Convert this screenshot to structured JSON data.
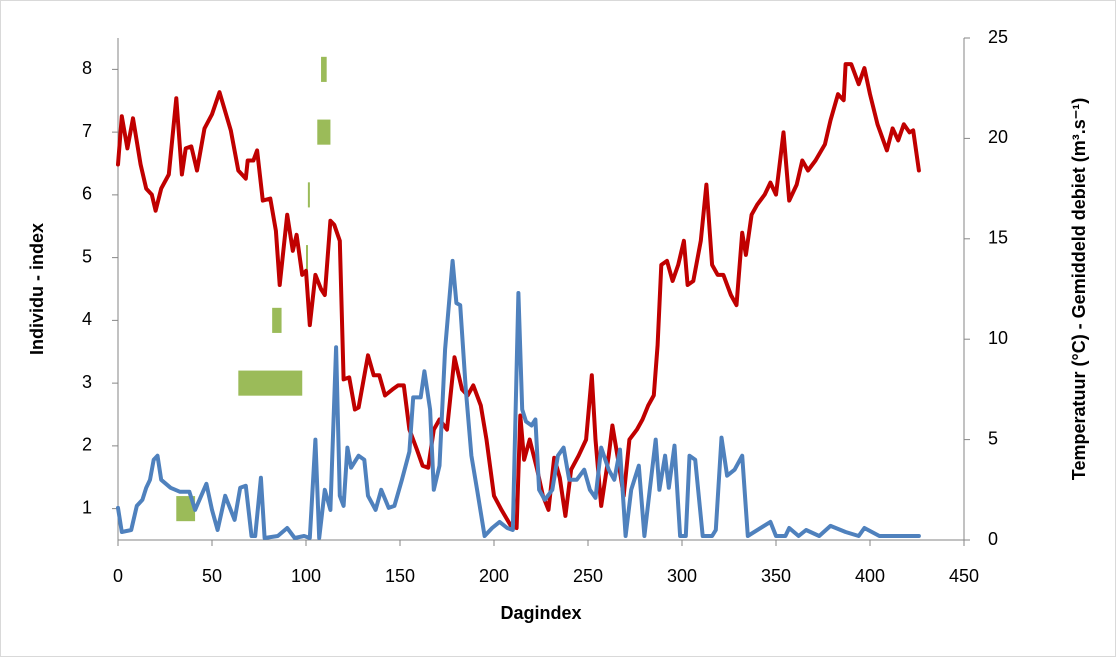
{
  "chart_data": {
    "type": "line",
    "xlabel": "Dagindex",
    "ylabel": "Individu - index",
    "y2label": "Temperatuur (°C) - Gemiddeld debiet (m³.s⁻¹)",
    "xlim": [
      0,
      450
    ],
    "xticks": [
      0,
      50,
      100,
      150,
      200,
      250,
      300,
      350,
      400,
      450
    ],
    "ylim": [
      0.5,
      8.5
    ],
    "yticks": [
      1,
      2,
      3,
      4,
      5,
      6,
      7,
      8
    ],
    "y2lim": [
      0,
      25
    ],
    "y2ticks": [
      0,
      5,
      10,
      15,
      20,
      25
    ],
    "grid": false,
    "range_color": "#9bbb59",
    "ranges": [
      {
        "y": 1,
        "start": 31,
        "end": 41
      },
      {
        "y": 3,
        "start": 64,
        "end": 98
      },
      {
        "y": 4,
        "start": 82,
        "end": 87
      },
      {
        "y": 5,
        "start": 100,
        "end": 101
      },
      {
        "y": 6,
        "start": 101,
        "end": 102
      },
      {
        "y": 7,
        "start": 106,
        "end": 113
      },
      {
        "y": 8,
        "start": 108,
        "end": 111
      }
    ],
    "series": [
      {
        "color": "#c00000",
        "axis": "y2",
        "x": [
          0,
          2,
          5,
          8,
          12,
          15,
          18,
          20,
          23,
          27,
          31,
          34,
          36,
          39,
          42,
          46,
          50,
          54,
          60,
          64,
          68,
          69,
          72,
          74,
          77,
          81,
          84,
          86,
          90,
          93,
          95,
          98,
          100,
          102,
          105,
          108,
          110,
          113,
          115,
          118,
          120,
          123,
          126,
          128,
          133,
          136,
          139,
          142,
          146,
          149,
          152,
          155,
          159,
          162,
          165,
          168,
          171,
          175,
          179,
          183,
          186,
          189,
          193,
          196,
          200,
          204,
          209,
          212,
          214,
          216,
          219,
          223,
          226,
          229,
          232,
          235,
          238,
          241,
          245,
          249,
          252,
          254,
          257,
          261,
          263,
          266,
          269,
          272,
          276,
          279,
          282,
          285,
          287,
          289,
          292,
          295,
          298,
          301,
          303,
          306,
          310,
          313,
          316,
          319,
          322,
          326,
          329,
          332,
          334,
          337,
          340,
          344,
          347,
          350,
          354,
          357,
          361,
          364,
          367,
          371,
          376,
          379,
          383,
          386,
          387,
          390,
          394,
          397,
          400,
          404,
          409,
          412,
          415,
          418,
          421,
          423,
          426
        ],
        "values": [
          18.7,
          21.1,
          19.5,
          21.0,
          18.7,
          17.5,
          17.2,
          16.4,
          17.5,
          18.2,
          22.0,
          18.2,
          19.5,
          19.6,
          18.4,
          20.5,
          21.2,
          22.3,
          20.4,
          18.4,
          18.0,
          18.9,
          18.9,
          19.4,
          16.9,
          17.0,
          15.4,
          12.7,
          16.2,
          14.4,
          15.2,
          13.2,
          13.4,
          10.7,
          13.2,
          12.5,
          12.2,
          15.9,
          15.7,
          14.9,
          8.0,
          8.1,
          6.5,
          6.6,
          9.2,
          8.2,
          8.2,
          7.2,
          7.5,
          7.7,
          7.7,
          5.5,
          4.5,
          3.7,
          3.6,
          5.5,
          6.0,
          5.5,
          9.1,
          7.5,
          7.2,
          7.7,
          6.7,
          5.0,
          2.2,
          1.5,
          0.7,
          0.6,
          6.2,
          4.0,
          5.0,
          3.5,
          2.2,
          1.5,
          4.1,
          3.1,
          1.2,
          3.5,
          4.2,
          5.0,
          8.2,
          5.0,
          1.7,
          4.2,
          5.7,
          4.0,
          2.2,
          5.0,
          5.5,
          6.0,
          6.7,
          7.2,
          9.7,
          13.7,
          13.9,
          12.9,
          13.7,
          14.9,
          12.7,
          12.9,
          14.9,
          17.7,
          13.7,
          13.2,
          13.2,
          12.2,
          11.7,
          15.3,
          14.2,
          16.2,
          16.7,
          17.2,
          17.8,
          17.2,
          20.3,
          16.9,
          17.7,
          18.9,
          18.4,
          18.9,
          19.7,
          20.9,
          22.2,
          21.9,
          23.7,
          23.7,
          22.7,
          23.5,
          22.2,
          20.7,
          19.4,
          20.5,
          19.9,
          20.7,
          20.3,
          20.4,
          18.4
        ]
      },
      {
        "color": "#4f81bd",
        "axis": "y2",
        "x": [
          0,
          2,
          7,
          10,
          13,
          15,
          17,
          19,
          21,
          23,
          28,
          33,
          38,
          41,
          47,
          50,
          53,
          57,
          62,
          65,
          68,
          71,
          73,
          76,
          78,
          85,
          90,
          94,
          99,
          102,
          105,
          107,
          110,
          113,
          116,
          118,
          120,
          122,
          124,
          128,
          131,
          133,
          137,
          140,
          144,
          147,
          151,
          155,
          157,
          161,
          163,
          166,
          168,
          171,
          174,
          178,
          180,
          182,
          185,
          188,
          191,
          195,
          199,
          203,
          207,
          210,
          213,
          215,
          217,
          220,
          222,
          224,
          227,
          231,
          234,
          237,
          240,
          244,
          248,
          251,
          254,
          257,
          261,
          264,
          267,
          270,
          273,
          277,
          280,
          283,
          286,
          288,
          291,
          293,
          296,
          299,
          302,
          304,
          307,
          311,
          316,
          318,
          321,
          324,
          328,
          332,
          335,
          347,
          350,
          355,
          357,
          362,
          366,
          373,
          379,
          387,
          394,
          397,
          405,
          416,
          426
        ],
        "values": [
          1.6,
          0.4,
          0.5,
          1.7,
          2.0,
          2.6,
          3.0,
          4.0,
          4.2,
          3.0,
          2.6,
          2.4,
          2.4,
          1.5,
          2.8,
          1.5,
          0.5,
          2.2,
          1.0,
          2.6,
          2.7,
          0.2,
          0.2,
          3.1,
          0.1,
          0.2,
          0.6,
          0.1,
          0.2,
          0.1,
          5.0,
          0.1,
          2.5,
          1.5,
          9.6,
          2.2,
          1.7,
          4.6,
          3.6,
          4.2,
          4.0,
          2.2,
          1.5,
          2.5,
          1.6,
          1.7,
          3.0,
          4.4,
          7.1,
          7.1,
          8.4,
          6.5,
          2.5,
          3.7,
          9.5,
          13.9,
          11.8,
          11.7,
          7.5,
          4.2,
          2.5,
          0.2,
          0.6,
          0.9,
          0.6,
          0.5,
          12.3,
          6.5,
          5.9,
          5.7,
          6.0,
          2.5,
          2.0,
          2.5,
          4.2,
          4.6,
          3.0,
          3.0,
          3.5,
          2.5,
          2.1,
          4.6,
          3.5,
          3.0,
          4.5,
          0.2,
          2.5,
          3.7,
          0.2,
          2.6,
          5.0,
          2.5,
          4.2,
          2.6,
          4.7,
          0.2,
          0.2,
          4.2,
          4.0,
          0.2,
          0.2,
          0.5,
          5.1,
          3.2,
          3.5,
          4.2,
          0.2,
          0.9,
          0.2,
          0.2,
          0.6,
          0.2,
          0.5,
          0.2,
          0.7,
          0.4,
          0.2,
          0.6,
          0.2,
          0.2,
          0.2
        ]
      }
    ]
  }
}
